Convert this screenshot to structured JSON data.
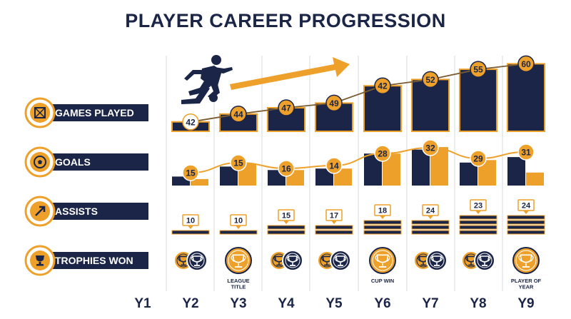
{
  "title": "PLAYER CAREER PROGRESSION",
  "colors": {
    "navy": "#1b2547",
    "orange": "#eea12a",
    "line": "#7a5c33",
    "grid": "#d7d9de"
  },
  "chart_data": [
    {
      "type": "bar",
      "metric": "GAMES PLAYED",
      "icon": "square-box-icon",
      "categories": [
        "Y1",
        "Y2",
        "Y3",
        "Y4",
        "Y5",
        "Y6",
        "Y7",
        "Y8",
        "Y9"
      ],
      "labels": [
        null,
        42,
        44,
        47,
        49,
        42,
        52,
        55,
        60
      ],
      "bar_levels": [
        null,
        0.12,
        0.22,
        0.3,
        0.36,
        0.58,
        0.66,
        0.79,
        0.86
      ]
    },
    {
      "type": "bar",
      "metric": "GOALS",
      "icon": "soccer-ball-icon",
      "categories": [
        "Y1",
        "Y2",
        "Y3",
        "Y4",
        "Y5",
        "Y6",
        "Y7",
        "Y8",
        "Y9"
      ],
      "series": [
        {
          "values": [
            null,
            15,
            15,
            16,
            14,
            28,
            32,
            29,
            31
          ],
          "color": "#1b2547"
        },
        {
          "values": [
            null,
            null,
            null,
            null,
            null,
            null,
            null,
            null,
            null
          ],
          "color": "#eea12a"
        }
      ],
      "navy_levels": [
        null,
        0.18,
        0.38,
        0.31,
        0.34,
        0.64,
        0.72,
        0.46,
        0.57
      ],
      "orange_levels": [
        null,
        0.13,
        0.44,
        0.31,
        0.34,
        0.64,
        0.77,
        0.51,
        0.26
      ]
    },
    {
      "type": "bar",
      "metric": "ASSISTS",
      "icon": "arrow-up-right-icon",
      "categories": [
        "Y1",
        "Y2",
        "Y3",
        "Y4",
        "Y5",
        "Y6",
        "Y7",
        "Y8",
        "Y9"
      ],
      "labels": [
        null,
        10,
        10,
        15,
        17,
        18,
        24,
        23,
        24
      ],
      "stripe_counts": [
        0,
        1,
        1,
        2,
        2,
        3,
        3,
        4,
        4
      ]
    },
    {
      "type": "table",
      "metric": "TROPHIES WON",
      "icon": "trophy-icon",
      "categories": [
        "Y1",
        "Y2",
        "Y3",
        "Y4",
        "Y5",
        "Y6",
        "Y7",
        "Y8",
        "Y9"
      ],
      "trophy_counts": [
        0,
        2,
        1,
        2,
        2,
        1,
        2,
        2,
        1
      ],
      "notes": [
        "",
        "",
        "LEAGUE TITLE",
        "",
        "",
        "CUP WIN",
        "",
        "",
        "PLAYER OF YEAR"
      ]
    }
  ]
}
